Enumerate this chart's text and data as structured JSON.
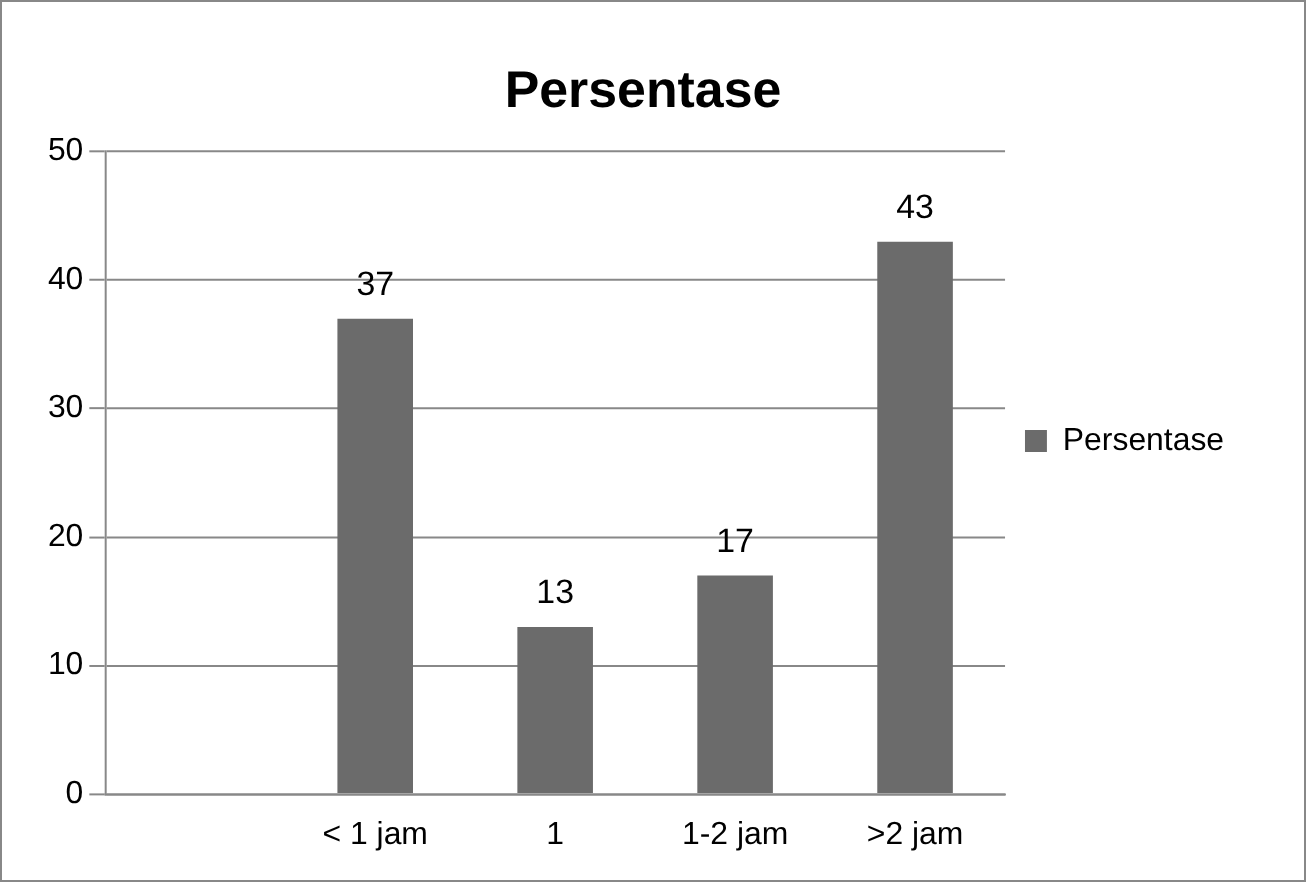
{
  "chart_data": {
    "type": "bar",
    "title": "Persentase",
    "categories": [
      null,
      "< 1 jam",
      "1",
      "1-2 jam",
      ">2 jam"
    ],
    "series": [
      {
        "name": "Persentase",
        "color": "#6b6b6b",
        "values": [
          null,
          37,
          13,
          17,
          43
        ]
      }
    ],
    "ylim": [
      0,
      50
    ],
    "yticks": [
      0,
      10,
      20,
      30,
      40,
      50
    ],
    "grid": "y",
    "legend": "right",
    "data_labels": true
  }
}
